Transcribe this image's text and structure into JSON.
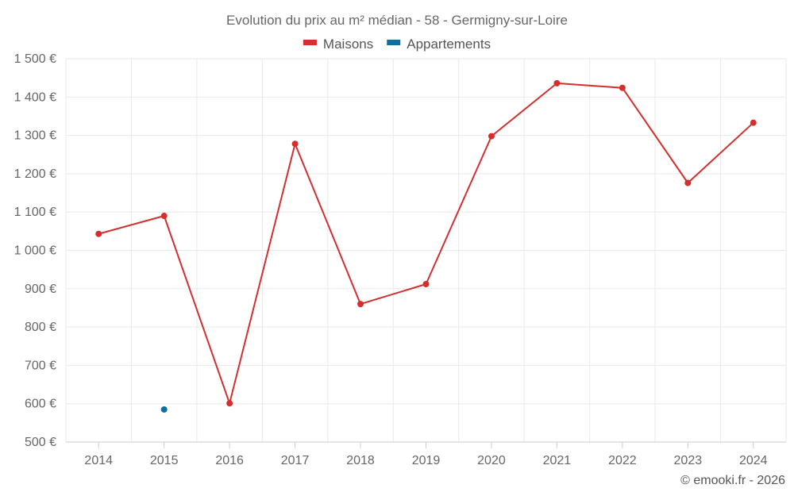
{
  "chart_data": {
    "type": "line",
    "title": "Evolution du prix au m² médian - 58 - Germigny-sur-Loire",
    "xlabel": "",
    "ylabel": "",
    "categories": [
      "2014",
      "2015",
      "2016",
      "2017",
      "2018",
      "2019",
      "2020",
      "2021",
      "2022",
      "2023",
      "2024"
    ],
    "ylim": [
      500,
      1500
    ],
    "y_ticks": [
      500,
      600,
      700,
      800,
      900,
      1000,
      1100,
      1200,
      1300,
      1400,
      1500
    ],
    "y_tick_labels": [
      "500 €",
      "600 €",
      "700 €",
      "800 €",
      "900 €",
      "1 000 €",
      "1 100 €",
      "1 200 €",
      "1 300 €",
      "1 400 €",
      "1 500 €"
    ],
    "grid": true,
    "legend_position": "top-center",
    "series": [
      {
        "name": "Maisons",
        "color": "#d32f2f",
        "values": [
          1043,
          1090,
          601,
          1278,
          860,
          912,
          1298,
          1436,
          1424,
          1176,
          1333
        ]
      },
      {
        "name": "Appartements",
        "color": "#0d6ea3",
        "values": [
          null,
          585,
          null,
          null,
          null,
          null,
          null,
          null,
          null,
          null,
          null
        ]
      }
    ],
    "credit": "© emooki.fr - 2026"
  }
}
